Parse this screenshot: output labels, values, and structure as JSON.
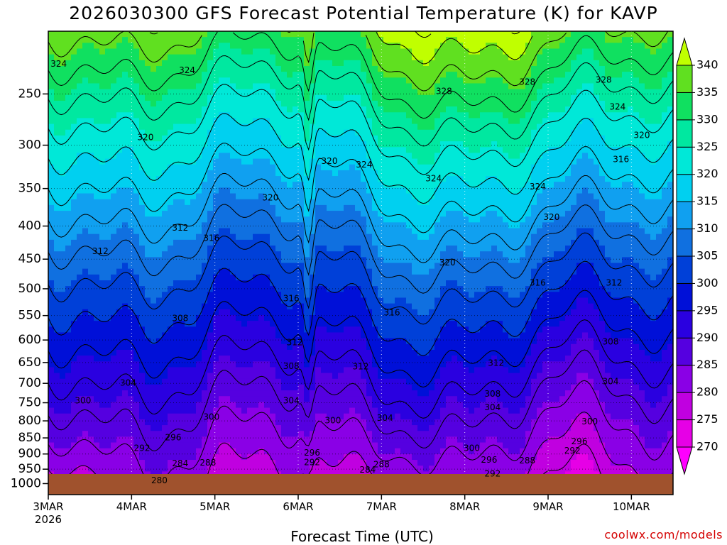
{
  "title": "2026030300 GFS Forecast Potential Temperature (K) for KAVP",
  "credit": "coolwx.com/models",
  "chart_data": {
    "type": "heatmap",
    "title": "2026030300 GFS Forecast Potential Temperature (K) for KAVP",
    "xlabel": "Forecast Time (UTC)",
    "ylabel": "",
    "y_axis": {
      "type": "log-pressure",
      "range": [
        1040,
        200
      ],
      "ticks": [
        250,
        300,
        350,
        400,
        450,
        500,
        550,
        600,
        650,
        700,
        750,
        800,
        850,
        900,
        950,
        1000
      ]
    },
    "x_axis": {
      "range_hours": [
        0,
        180
      ],
      "ticks": [
        "3MAR",
        "4MAR",
        "5MAR",
        "6MAR",
        "7MAR",
        "8MAR",
        "9MAR",
        "10MAR"
      ],
      "tick_hours": [
        0,
        24,
        48,
        72,
        96,
        120,
        144,
        168
      ],
      "sublabel": "2026",
      "grid": "dotted"
    },
    "colorbar": {
      "levels": [
        270,
        275,
        280,
        285,
        290,
        295,
        300,
        305,
        310,
        315,
        320,
        325,
        330,
        335,
        340
      ],
      "colors": [
        "#ff00ff",
        "#e600e6",
        "#c000e0",
        "#8a00e6",
        "#5500e0",
        "#2a00e0",
        "#0010d8",
        "#0040d8",
        "#1070e0",
        "#10a0f0",
        "#00d0f0",
        "#00e8d8",
        "#00e8a0",
        "#10e060",
        "#60e020",
        "#c0ff00"
      ],
      "extend": "both"
    },
    "contour_interval": 4,
    "contour_labels": [
      {
        "value": 324,
        "hour": 3,
        "p": 225
      },
      {
        "value": 324,
        "hour": 40,
        "p": 230
      },
      {
        "value": 328,
        "hour": 114,
        "p": 248
      },
      {
        "value": 328,
        "hour": 138,
        "p": 240
      },
      {
        "value": 328,
        "hour": 160,
        "p": 238
      },
      {
        "value": 324,
        "hour": 164,
        "p": 262
      },
      {
        "value": 320,
        "hour": 28,
        "p": 292
      },
      {
        "value": 320,
        "hour": 171,
        "p": 290
      },
      {
        "value": 320,
        "hour": 81,
        "p": 318
      },
      {
        "value": 324,
        "hour": 91,
        "p": 322
      },
      {
        "value": 324,
        "hour": 111,
        "p": 338
      },
      {
        "value": 324,
        "hour": 141,
        "p": 348
      },
      {
        "value": 316,
        "hour": 165,
        "p": 316
      },
      {
        "value": 320,
        "hour": 64,
        "p": 362
      },
      {
        "value": 320,
        "hour": 145,
        "p": 388
      },
      {
        "value": 312,
        "hour": 38,
        "p": 403
      },
      {
        "value": 316,
        "hour": 47,
        "p": 418
      },
      {
        "value": 312,
        "hour": 15,
        "p": 438
      },
      {
        "value": 320,
        "hour": 115,
        "p": 456
      },
      {
        "value": 316,
        "hour": 141,
        "p": 490
      },
      {
        "value": 312,
        "hour": 163,
        "p": 490
      },
      {
        "value": 316,
        "hour": 70,
        "p": 518
      },
      {
        "value": 316,
        "hour": 99,
        "p": 545
      },
      {
        "value": 308,
        "hour": 38,
        "p": 556
      },
      {
        "value": 312,
        "hour": 71,
        "p": 606
      },
      {
        "value": 308,
        "hour": 162,
        "p": 604
      },
      {
        "value": 308,
        "hour": 70,
        "p": 659
      },
      {
        "value": 312,
        "hour": 90,
        "p": 660
      },
      {
        "value": 312,
        "hour": 129,
        "p": 652
      },
      {
        "value": 304,
        "hour": 23,
        "p": 700
      },
      {
        "value": 304,
        "hour": 162,
        "p": 696
      },
      {
        "value": 300,
        "hour": 10,
        "p": 745
      },
      {
        "value": 308,
        "hour": 128,
        "p": 728
      },
      {
        "value": 304,
        "hour": 70,
        "p": 745
      },
      {
        "value": 304,
        "hour": 128,
        "p": 763
      },
      {
        "value": 300,
        "hour": 47,
        "p": 790
      },
      {
        "value": 300,
        "hour": 82,
        "p": 800
      },
      {
        "value": 304,
        "hour": 97,
        "p": 793
      },
      {
        "value": 300,
        "hour": 156,
        "p": 803
      },
      {
        "value": 296,
        "hour": 36,
        "p": 850
      },
      {
        "value": 296,
        "hour": 153,
        "p": 862
      },
      {
        "value": 292,
        "hour": 27,
        "p": 883
      },
      {
        "value": 300,
        "hour": 122,
        "p": 883
      },
      {
        "value": 292,
        "hour": 151,
        "p": 890
      },
      {
        "value": 296,
        "hour": 76,
        "p": 897
      },
      {
        "value": 292,
        "hour": 76,
        "p": 928
      },
      {
        "value": 284,
        "hour": 38,
        "p": 932
      },
      {
        "value": 288,
        "hour": 46,
        "p": 930
      },
      {
        "value": 296,
        "hour": 127,
        "p": 920
      },
      {
        "value": 288,
        "hour": 138,
        "p": 922
      },
      {
        "value": 288,
        "hour": 96,
        "p": 935
      },
      {
        "value": 284,
        "hour": 92,
        "p": 953
      },
      {
        "value": 292,
        "hour": 128,
        "p": 967
      },
      {
        "value": 280,
        "hour": 32,
        "p": 990
      }
    ],
    "ground_color": "#a0522d"
  }
}
